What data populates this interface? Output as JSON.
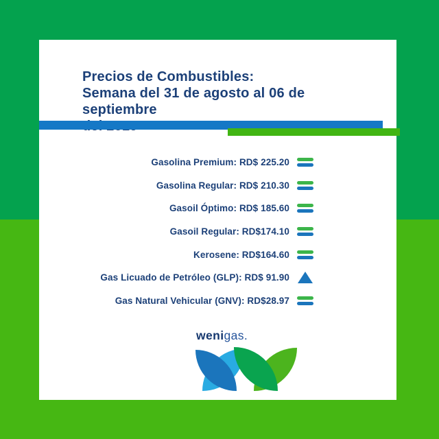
{
  "title": {
    "lines": [
      "Precios de Combustibles:",
      "Semana del 31 de agosto al 06 de septiembre",
      "del 2019"
    ]
  },
  "prices": [
    {
      "name": "Gasolina Premium",
      "price": "RD$ 225.20",
      "label": "Gasolina Premium: RD$ 225.20",
      "trend": "equal",
      "icon": "equals-icon"
    },
    {
      "name": "Gasolina Regular",
      "price": "RD$ 210.30",
      "label": "Gasolina Regular: RD$ 210.30",
      "trend": "equal",
      "icon": "equals-icon"
    },
    {
      "name": "Gasoil Óptimo",
      "price": "RD$ 185.60",
      "label": "Gasoil Óptimo: RD$ 185.60",
      "trend": "equal",
      "icon": "equals-icon"
    },
    {
      "name": "Gasoil Regular",
      "price": "RD$174.10",
      "label": "Gasoil Regular: RD$174.10",
      "trend": "equal",
      "icon": "equals-icon"
    },
    {
      "name": "Kerosene",
      "price": "RD$164.60",
      "label": "Kerosene: RD$164.60",
      "trend": "equal",
      "icon": "equals-icon"
    },
    {
      "name": "Gas Licuado de Petróleo (GLP)",
      "price": "RD$ 91.90",
      "label": "Gas Licuado de Petróleo (GLP): RD$ 91.90",
      "trend": "up",
      "icon": "triangle-up-icon"
    },
    {
      "name": "Gas Natural Vehicular (GNV)",
      "price": "RD$28.97",
      "label": "Gas Natural Vehicular (GNV): RD$28.97",
      "trend": "equal",
      "icon": "equals-icon"
    }
  ],
  "logo": {
    "brand_bold": "weni",
    "brand_rest": "gas.",
    "mark": "four-leaf-w-icon"
  },
  "colors": {
    "background_top": "#04a24e",
    "background_bottom": "#46b713",
    "card": "#ffffff",
    "title_text": "#1c4078",
    "stripe_blue": "#1578c6",
    "stripe_green": "#41b513",
    "trend_equal_green": "#3cb54a",
    "trend_equal_blue": "#1b75bc",
    "trend_up_blue": "#1b75bc",
    "leaf_dark_blue": "#1b75bc",
    "leaf_light_blue": "#29abe2",
    "leaf_dark_green": "#0aa44f",
    "leaf_bright_green": "#4cb41e"
  }
}
